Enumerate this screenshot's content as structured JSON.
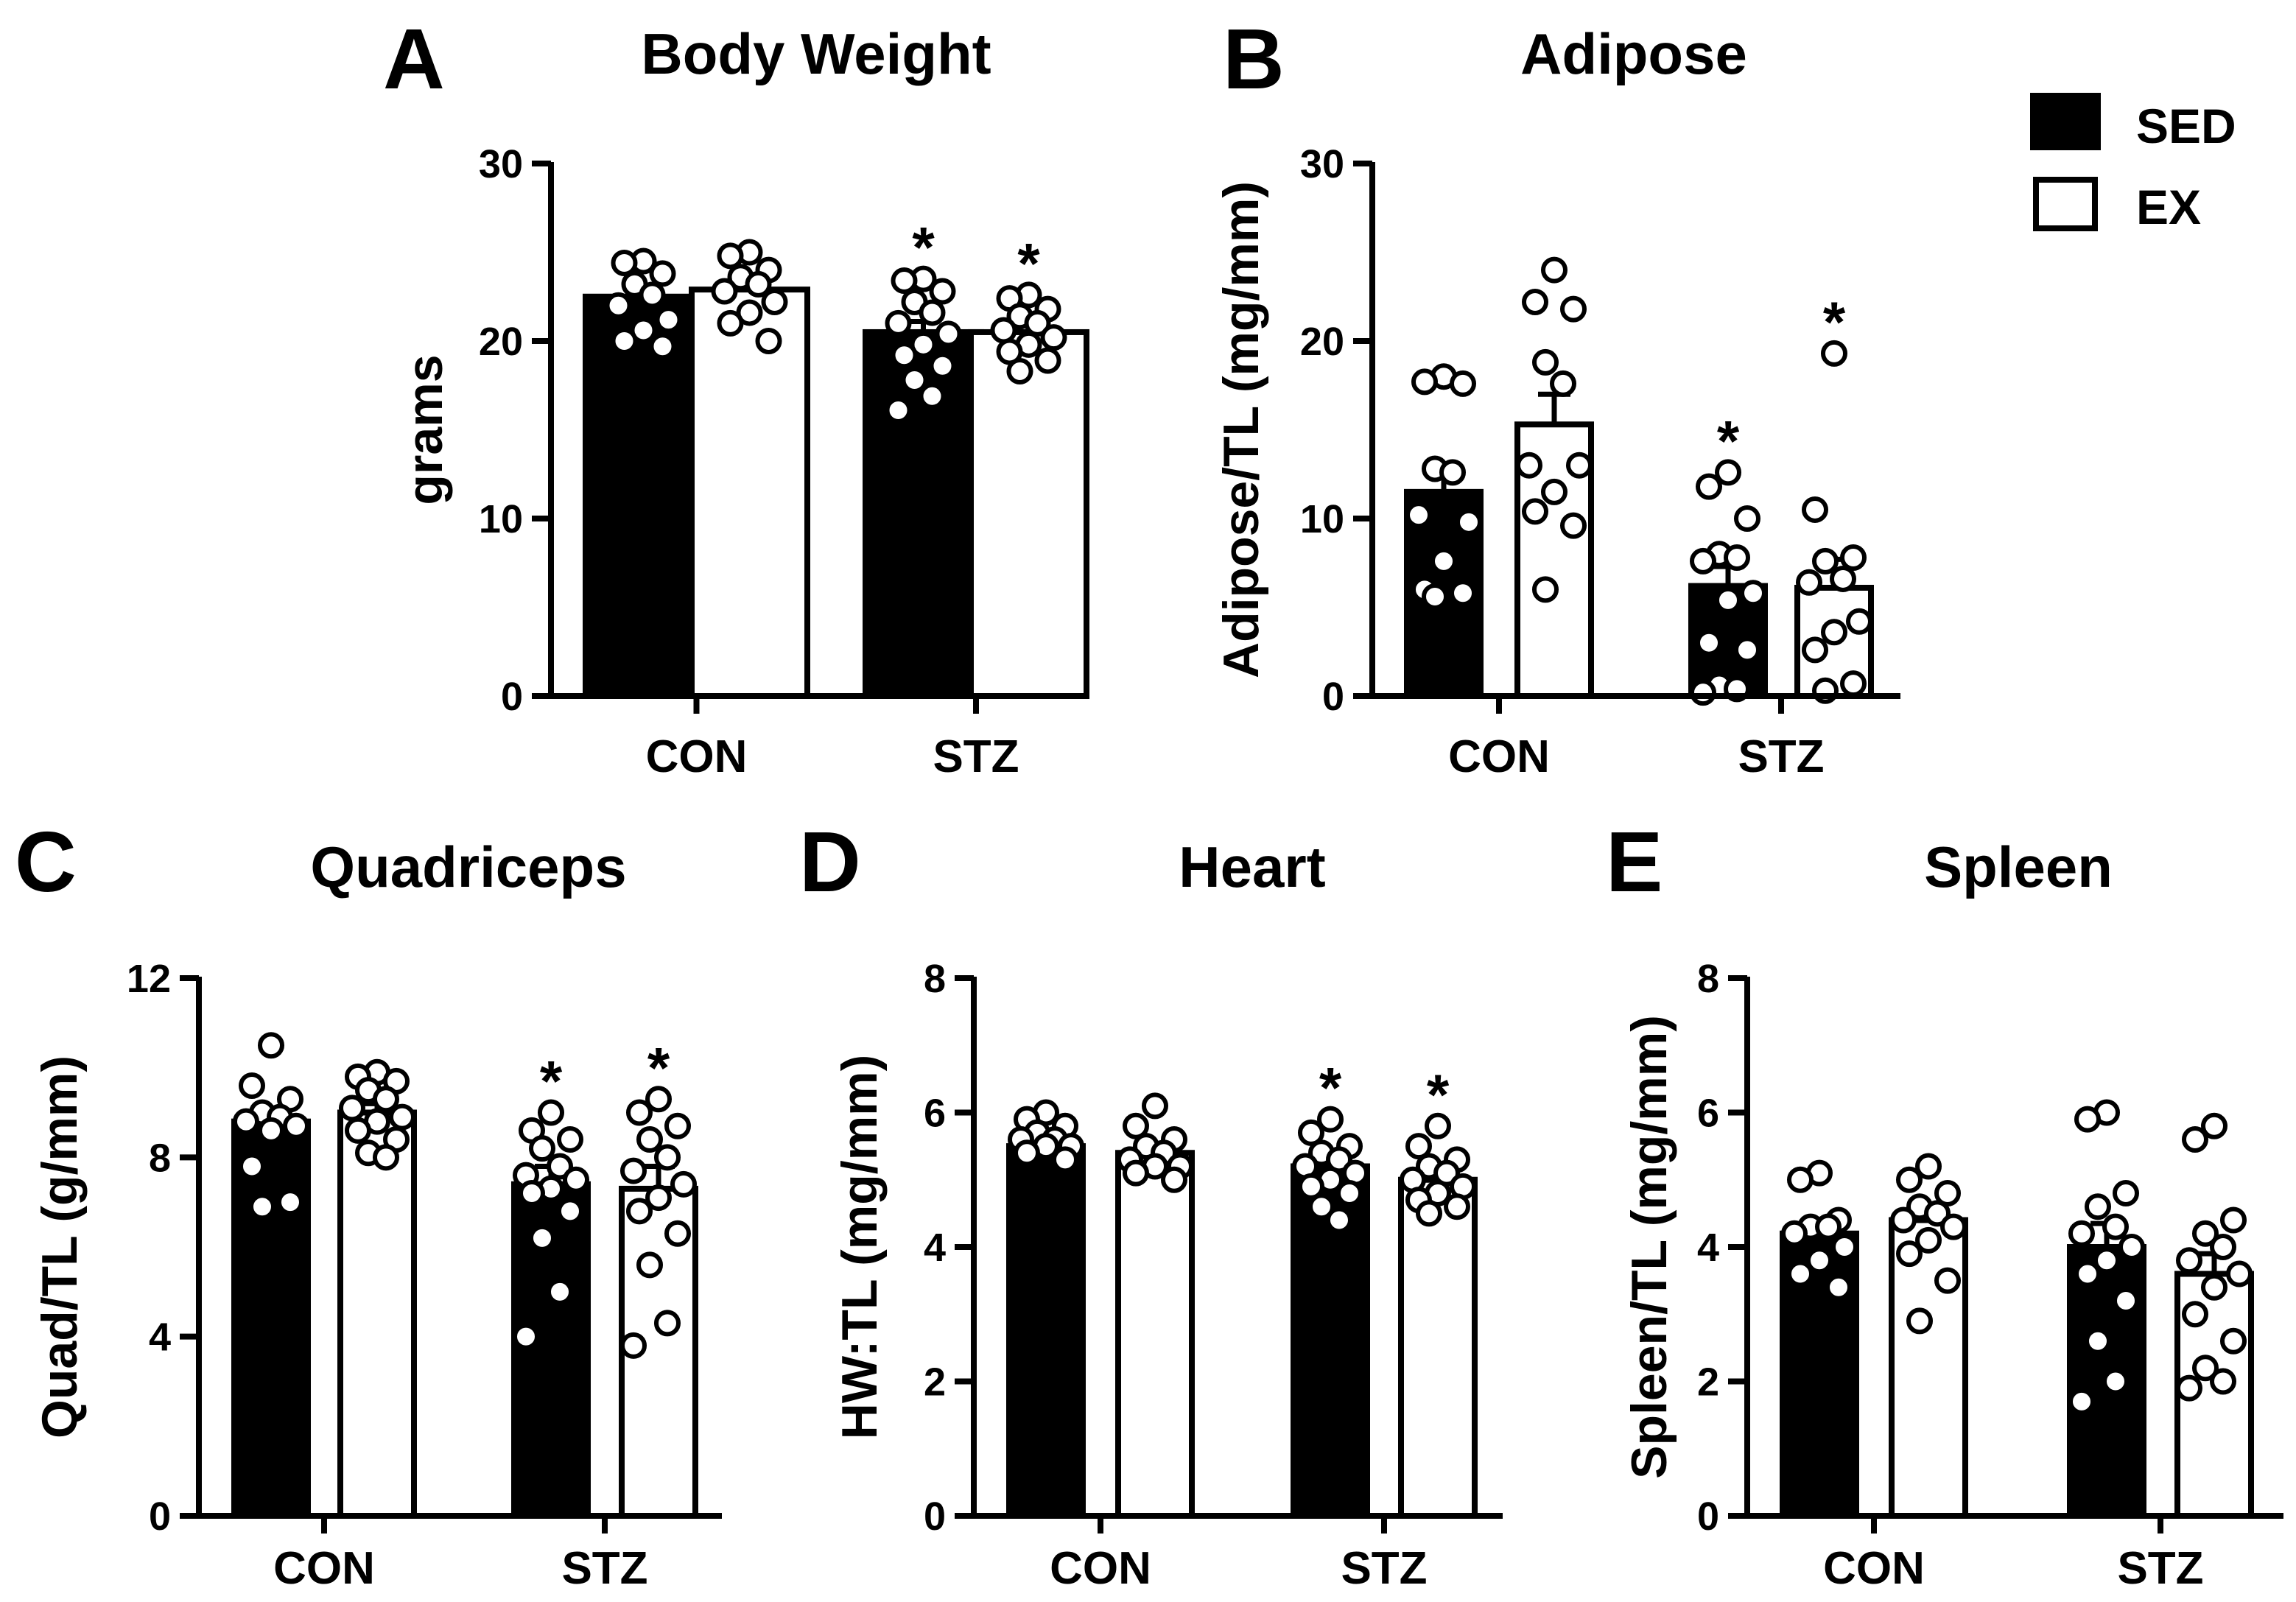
{
  "legend": {
    "entries": [
      {
        "label": "SED",
        "fill": "#000000"
      },
      {
        "label": "EX",
        "fill": "#ffffff"
      }
    ]
  },
  "colors": {
    "sed": "#000000",
    "ex": "#ffffff",
    "stroke": "#000000"
  },
  "chart_data": [
    {
      "id": "A",
      "letter": "A",
      "type": "bar",
      "title": "Body Weight",
      "ylabel": "grams",
      "ylim": [
        0,
        30
      ],
      "yticks": [
        0,
        10,
        20,
        30
      ],
      "ytick_labels": [
        "0",
        "10",
        "20",
        "30"
      ],
      "categories": [
        "CON",
        "STZ"
      ],
      "series": [
        {
          "name": "SED",
          "values": [
            22.5,
            20.5
          ],
          "sem": [
            0.5,
            0.6
          ],
          "points": [
            [
              24.5,
              24.4,
              23.8,
              23.2,
              22.6,
              22.0,
              21.2,
              20.6,
              20.0,
              19.7
            ],
            [
              23.5,
              23.4,
              22.8,
              22.2,
              21.6,
              21.0,
              20.4,
              19.8,
              19.2,
              18.6,
              17.8,
              16.9,
              16.1
            ]
          ]
        },
        {
          "name": "EX",
          "values": [
            22.9,
            20.5
          ],
          "sem": [
            0.5,
            0.4
          ],
          "points": [
            [
              25.0,
              24.8,
              24.0,
              23.6,
              23.2,
              22.8,
              22.2,
              21.6,
              21.0,
              20.0
            ],
            [
              22.6,
              22.4,
              21.8,
              21.4,
              21.0,
              20.6,
              20.2,
              19.8,
              19.4,
              18.9,
              18.3
            ]
          ]
        }
      ],
      "significance": [
        {
          "series": "SED",
          "category": "STZ",
          "label": "*"
        },
        {
          "series": "EX",
          "category": "STZ",
          "label": "*"
        }
      ]
    },
    {
      "id": "B",
      "letter": "B",
      "type": "bar",
      "title": "Adipose",
      "ylabel": "Adipose/TL (mg/mm)",
      "ylim": [
        0,
        30
      ],
      "yticks": [
        0,
        10,
        20,
        30
      ],
      "ytick_labels": [
        "0",
        "10",
        "20",
        "30"
      ],
      "categories": [
        "CON",
        "STZ"
      ],
      "series": [
        {
          "name": "SED",
          "values": [
            11.5,
            6.2
          ],
          "sem": [
            1.3,
            1.1
          ],
          "points": [
            [
              17.7,
              17.6,
              18.0,
              12.8,
              12.6,
              10.2,
              9.8,
              7.6,
              6.0,
              5.8,
              5.6
            ],
            [
              12.6,
              11.8,
              10.0,
              8.0,
              7.8,
              7.6,
              5.8,
              5.4,
              3.0,
              2.6,
              0.6,
              0.4,
              0.2
            ]
          ]
        },
        {
          "name": "EX",
          "values": [
            15.3,
            6.1
          ],
          "sem": [
            1.7,
            1.6
          ],
          "points": [
            [
              24.0,
              22.2,
              21.8,
              18.8,
              17.6,
              13.0,
              13.0,
              11.5,
              10.4,
              9.6,
              6.0
            ],
            [
              19.3,
              10.5,
              7.8,
              7.6,
              6.6,
              6.4,
              4.2,
              3.6,
              2.6,
              0.7,
              0.3
            ]
          ]
        }
      ],
      "significance": [
        {
          "series": "SED",
          "category": "STZ",
          "label": "*"
        },
        {
          "series": "EX",
          "category": "STZ",
          "label": "*"
        }
      ]
    },
    {
      "id": "C",
      "letter": "C",
      "type": "bar",
      "title": "Quadriceps",
      "ylabel": "Quad/TL (g/mm)",
      "ylim": [
        0,
        12
      ],
      "yticks": [
        0,
        4,
        8,
        12
      ],
      "ytick_labels": [
        "0",
        "4",
        "8",
        "12"
      ],
      "categories": [
        "CON",
        "STZ"
      ],
      "series": [
        {
          "name": "SED",
          "values": [
            8.8,
            7.4
          ],
          "sem": [
            0.3,
            0.4
          ],
          "points": [
            [
              10.5,
              9.6,
              9.3,
              9.0,
              8.9,
              8.8,
              8.7,
              8.6,
              7.8,
              7.0,
              6.9
            ],
            [
              9.0,
              8.6,
              8.4,
              8.2,
              7.8,
              7.6,
              7.5,
              7.3,
              7.2,
              6.8,
              6.2,
              5.0,
              4.0
            ]
          ]
        },
        {
          "name": "EX",
          "values": [
            9.0,
            7.3
          ],
          "sem": [
            0.2,
            0.5
          ],
          "points": [
            [
              9.9,
              9.8,
              9.7,
              9.5,
              9.3,
              9.1,
              8.9,
              8.8,
              8.6,
              8.4,
              8.1,
              8.0
            ],
            [
              9.3,
              9.0,
              8.7,
              8.4,
              8.0,
              7.7,
              7.4,
              7.1,
              6.8,
              6.3,
              5.6,
              4.3,
              3.8
            ]
          ]
        }
      ],
      "significance": [
        {
          "series": "SED",
          "category": "STZ",
          "label": "*"
        },
        {
          "series": "EX",
          "category": "STZ",
          "label": "*"
        }
      ]
    },
    {
      "id": "D",
      "letter": "D",
      "type": "bar",
      "title": "Heart",
      "ylabel": "HW:TL (mg/mm)",
      "ylim": [
        0,
        8
      ],
      "yticks": [
        0,
        2,
        4,
        6,
        8
      ],
      "ytick_labels": [
        "0",
        "2",
        "4",
        "6",
        "8"
      ],
      "categories": [
        "CON",
        "STZ"
      ],
      "series": [
        {
          "name": "SED",
          "values": [
            5.5,
            5.2
          ],
          "sem": [
            0.06,
            0.1
          ],
          "points": [
            [
              6.0,
              5.9,
              5.8,
              5.7,
              5.6,
              5.6,
              5.5,
              5.5,
              5.4,
              5.3
            ],
            [
              5.9,
              5.7,
              5.5,
              5.4,
              5.3,
              5.2,
              5.1,
              5.0,
              4.9,
              4.8,
              4.6,
              4.4
            ]
          ]
        },
        {
          "name": "EX",
          "values": [
            5.4,
            5.0
          ],
          "sem": [
            0.08,
            0.09
          ],
          "points": [
            [
              6.1,
              5.8,
              5.6,
              5.5,
              5.4,
              5.3,
              5.2,
              5.2,
              5.1,
              5.0
            ],
            [
              5.8,
              5.5,
              5.3,
              5.2,
              5.1,
              5.0,
              4.9,
              4.8,
              4.7,
              4.6,
              4.5
            ]
          ]
        }
      ],
      "significance": [
        {
          "series": "SED",
          "category": "STZ",
          "label": "*"
        },
        {
          "series": "EX",
          "category": "STZ",
          "label": "*"
        }
      ]
    },
    {
      "id": "E",
      "letter": "E",
      "type": "bar",
      "title": "Spleen",
      "ylabel": "Spleen/TL (mg/mm)",
      "ylim": [
        0,
        8
      ],
      "yticks": [
        0,
        2,
        4,
        6,
        8
      ],
      "ytick_labels": [
        "0",
        "2",
        "4",
        "6",
        "8"
      ],
      "categories": [
        "CON",
        "STZ"
      ],
      "series": [
        {
          "name": "SED",
          "values": [
            4.2,
            4.0
          ],
          "sem": [
            0.15,
            0.35
          ],
          "points": [
            [
              5.1,
              5.0,
              4.4,
              4.3,
              4.3,
              4.2,
              4.0,
              3.8,
              3.6,
              3.4
            ],
            [
              6.0,
              5.9,
              4.8,
              4.6,
              4.3,
              4.2,
              4.0,
              3.8,
              3.6,
              3.2,
              2.6,
              2.0,
              1.7
            ]
          ]
        },
        {
          "name": "EX",
          "values": [
            4.4,
            3.6
          ],
          "sem": [
            0.2,
            0.3
          ],
          "points": [
            [
              5.2,
              5.0,
              4.8,
              4.6,
              4.5,
              4.4,
              4.3,
              4.1,
              3.9,
              3.5,
              2.9
            ],
            [
              5.8,
              5.6,
              4.4,
              4.2,
              4.0,
              3.8,
              3.6,
              3.4,
              3.0,
              2.6,
              2.2,
              2.0,
              1.9
            ]
          ]
        }
      ],
      "significance": []
    }
  ]
}
